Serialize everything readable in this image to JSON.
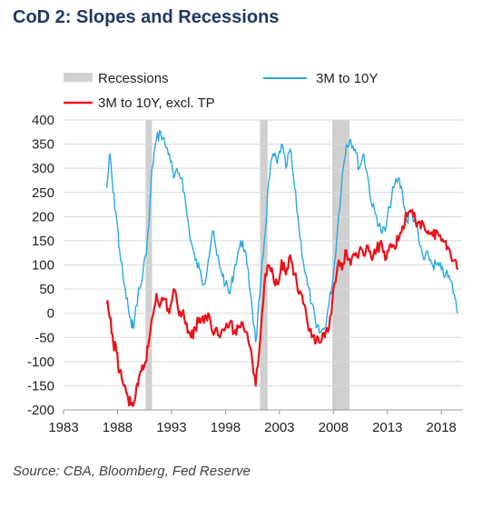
{
  "title": "CoD 2:  Slopes and Recessions",
  "source": "Source:  CBA, Bloomberg, Fed Reserve",
  "chart_data": {
    "type": "line",
    "legend": {
      "recessions": "Recessions",
      "series_a": "3M to 10Y",
      "series_b": "3M to 10Y, excl. TP"
    },
    "xlim": [
      1983,
      2020
    ],
    "ylim": [
      -200,
      400
    ],
    "x_ticks": [
      1983,
      1988,
      1993,
      1998,
      2003,
      2008,
      2013,
      2018
    ],
    "y_ticks": [
      -200,
      -150,
      -100,
      -50,
      0,
      50,
      100,
      150,
      200,
      250,
      300,
      350,
      400
    ],
    "grid": "horizontal",
    "recessions": [
      [
        1990.6,
        1991.2
      ],
      [
        2001.2,
        2001.9
      ],
      [
        2007.9,
        2009.5
      ]
    ],
    "series": [
      {
        "name": "3M to 10Y",
        "color": "#29a8e0",
        "x": [
          1987.0,
          1987.3,
          1987.6,
          1987.9,
          1988.2,
          1988.6,
          1989.0,
          1989.3,
          1989.6,
          1989.9,
          1990.2,
          1990.6,
          1990.9,
          1991.2,
          1991.6,
          1992.0,
          1992.4,
          1992.8,
          1993.2,
          1993.6,
          1994.0,
          1994.4,
          1994.8,
          1995.2,
          1995.6,
          1996.0,
          1996.4,
          1996.8,
          1997.2,
          1997.6,
          1998.0,
          1998.4,
          1998.8,
          1999.2,
          1999.6,
          2000.0,
          2000.4,
          2000.8,
          2001.2,
          2001.6,
          2002.0,
          2002.4,
          2002.8,
          2003.2,
          2003.6,
          2004.0,
          2004.4,
          2004.8,
          2005.2,
          2005.6,
          2006.0,
          2006.4,
          2006.8,
          2007.2,
          2007.6,
          2008.0,
          2008.4,
          2008.8,
          2009.2,
          2009.6,
          2010.0,
          2010.4,
          2010.8,
          2011.2,
          2011.6,
          2012.0,
          2012.4,
          2012.8,
          2013.2,
          2013.6,
          2014.0,
          2014.4,
          2014.8,
          2015.2,
          2015.6,
          2016.0,
          2016.4,
          2016.8,
          2017.2,
          2017.6,
          2018.0,
          2018.4,
          2018.8,
          2019.2,
          2019.5
        ],
        "values": [
          260,
          330,
          250,
          200,
          130,
          60,
          10,
          -30,
          -10,
          40,
          60,
          120,
          180,
          300,
          360,
          375,
          350,
          330,
          280,
          290,
          280,
          210,
          150,
          110,
          90,
          60,
          110,
          170,
          120,
          90,
          60,
          40,
          90,
          130,
          150,
          100,
          30,
          -60,
          40,
          150,
          270,
          330,
          310,
          350,
          300,
          340,
          260,
          180,
          110,
          60,
          20,
          -30,
          -40,
          -30,
          20,
          80,
          180,
          280,
          350,
          360,
          340,
          300,
          330,
          280,
          220,
          200,
          170,
          170,
          220,
          260,
          280,
          250,
          190,
          210,
          190,
          140,
          110,
          120,
          100,
          100,
          90,
          80,
          70,
          40,
          0
        ]
      },
      {
        "name": "3M to 10Y, excl. TP",
        "color": "#e8131a",
        "x": [
          1987.0,
          1987.3,
          1987.6,
          1987.9,
          1988.2,
          1988.6,
          1989.0,
          1989.3,
          1989.6,
          1989.9,
          1990.2,
          1990.6,
          1990.9,
          1991.2,
          1991.6,
          1992.0,
          1992.4,
          1992.8,
          1993.2,
          1993.6,
          1994.0,
          1994.4,
          1994.8,
          1995.2,
          1995.6,
          1996.0,
          1996.4,
          1996.8,
          1997.2,
          1997.6,
          1998.0,
          1998.4,
          1998.8,
          1999.2,
          1999.6,
          2000.0,
          2000.4,
          2000.8,
          2001.2,
          2001.6,
          2002.0,
          2002.4,
          2002.8,
          2003.2,
          2003.6,
          2004.0,
          2004.4,
          2004.8,
          2005.2,
          2005.6,
          2006.0,
          2006.4,
          2006.8,
          2007.2,
          2007.6,
          2008.0,
          2008.4,
          2008.8,
          2009.2,
          2009.6,
          2010.0,
          2010.4,
          2010.8,
          2011.2,
          2011.6,
          2012.0,
          2012.4,
          2012.8,
          2013.2,
          2013.6,
          2014.0,
          2014.4,
          2014.8,
          2015.2,
          2015.6,
          2016.0,
          2016.4,
          2016.8,
          2017.2,
          2017.6,
          2018.0,
          2018.4,
          2018.8,
          2019.2,
          2019.5
        ],
        "values": [
          20,
          -10,
          -60,
          -80,
          -120,
          -150,
          -180,
          -190,
          -180,
          -150,
          -120,
          -100,
          -60,
          -10,
          40,
          20,
          30,
          0,
          50,
          10,
          0,
          -20,
          -50,
          -30,
          -10,
          -20,
          0,
          -40,
          -30,
          -40,
          -30,
          -20,
          -40,
          -30,
          -20,
          -40,
          -80,
          -150,
          -60,
          60,
          100,
          80,
          60,
          110,
          80,
          120,
          80,
          40,
          20,
          -20,
          -50,
          -60,
          -60,
          -50,
          -30,
          50,
          100,
          90,
          130,
          100,
          120,
          130,
          120,
          140,
          110,
          130,
          150,
          110,
          140,
          140,
          150,
          180,
          200,
          210,
          190,
          190,
          180,
          170,
          160,
          170,
          150,
          150,
          130,
          110,
          90
        ]
      }
    ]
  }
}
